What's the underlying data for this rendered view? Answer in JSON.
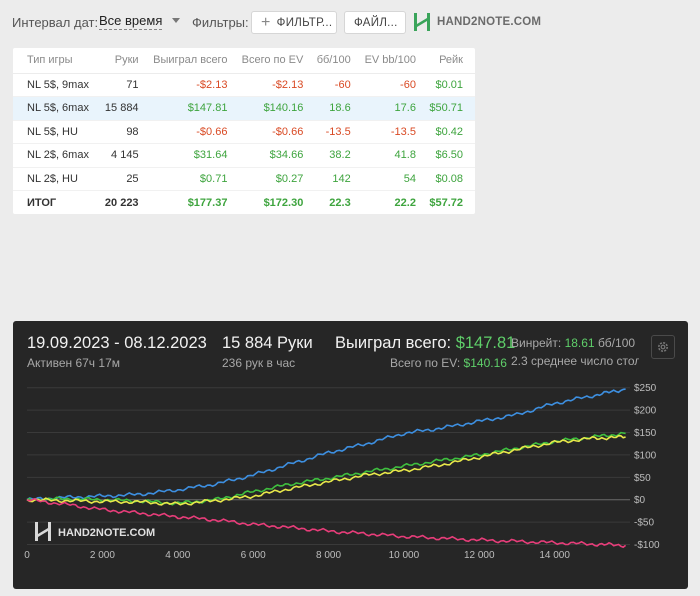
{
  "toolbar": {
    "interval_label": "Интервал дат:",
    "interval_value": "Все время",
    "filters_label": "Фильтры:",
    "filter_button": "ФИЛЬТР...",
    "file_button": "ФАЙЛ...",
    "logo_text": "HAND2NOTE.COM"
  },
  "table": {
    "headers": [
      "Тип игры",
      "Руки",
      "Выиграл всего",
      "Всего по EV",
      "бб/100",
      "EV bb/100",
      "Рейк"
    ],
    "rows": [
      [
        "NL 5$, 9max",
        "71",
        "-$2.13",
        "-$2.13",
        "-60",
        "-60",
        "$0.01"
      ],
      [
        "NL 5$, 6max",
        "15 884",
        "$147.81",
        "$140.16",
        "18.6",
        "17.6",
        "$50.71"
      ],
      [
        "NL 5$, HU",
        "98",
        "-$0.66",
        "-$0.66",
        "-13.5",
        "-13.5",
        "$0.42"
      ],
      [
        "NL 2$, 6max",
        "4 145",
        "$31.64",
        "$34.66",
        "38.2",
        "41.8",
        "$6.50"
      ],
      [
        "NL 2$, HU",
        "25",
        "$0.71",
        "$0.27",
        "142",
        "54",
        "$0.08"
      ]
    ],
    "total": [
      "ИТОГ",
      "20 223",
      "$177.37",
      "$172.30",
      "22.3",
      "22.2",
      "$57.72"
    ],
    "highlight_row": 1
  },
  "graph": {
    "date_range": "19.09.2023 - 08.12.2023",
    "active": "Активен 67ч 17м",
    "hands": "15 884 Руки",
    "hands_per_hour": "236 рук в час",
    "won_label": "Выиграл всего:",
    "won_value": "$147.81",
    "ev_label": "Всего по EV:",
    "ev_value": "$140.16",
    "winrate_label": "Винрейт:",
    "winrate_value": "18.61",
    "winrate_unit": "бб/100",
    "avg_players": "2.3 среднее число стол",
    "logo_text": "HAND2NOTE.COM"
  },
  "chart_data": {
    "type": "line",
    "x_ticks": [
      0,
      2000,
      4000,
      6000,
      8000,
      10000,
      12000,
      14000
    ],
    "x_tick_labels": [
      "0",
      "2 000",
      "4 000",
      "6 000",
      "8 000",
      "10 000",
      "12 000",
      "14 000"
    ],
    "y_ticks": [
      250,
      200,
      150,
      100,
      50,
      0,
      -50,
      -100
    ],
    "y_tick_labels": [
      "$250",
      "$200",
      "$150",
      "$100",
      "$50",
      "$0",
      "-$50",
      "-$100"
    ],
    "xlim": [
      0,
      16000
    ],
    "ylim": [
      -110,
      265
    ],
    "grid": true,
    "series": [
      {
        "color": "#3d8fe0",
        "x": [
          0,
          1000,
          2000,
          3000,
          4000,
          5000,
          6000,
          7000,
          8000,
          9000,
          10000,
          11000,
          12000,
          13000,
          14000,
          15000,
          15884
        ],
        "y": [
          0,
          5,
          8,
          12,
          22,
          35,
          55,
          80,
          105,
          125,
          148,
          160,
          175,
          190,
          215,
          232,
          247
        ]
      },
      {
        "color": "#3fbf3f",
        "x": [
          0,
          1000,
          2000,
          3000,
          4000,
          5000,
          6000,
          7000,
          8000,
          9000,
          10000,
          11000,
          12000,
          13000,
          14000,
          15000,
          15884
        ],
        "y": [
          0,
          2,
          0,
          -3,
          -8,
          0,
          18,
          35,
          48,
          62,
          75,
          88,
          100,
          115,
          130,
          140,
          148
        ]
      },
      {
        "color": "#e8e84a",
        "x": [
          0,
          1000,
          2000,
          3000,
          4000,
          5000,
          6000,
          7000,
          8000,
          9000,
          10000,
          11000,
          12000,
          13000,
          14000,
          15000,
          15884
        ],
        "y": [
          0,
          -2,
          -4,
          -5,
          -10,
          -2,
          8,
          25,
          40,
          55,
          65,
          78,
          95,
          112,
          128,
          137,
          140
        ]
      },
      {
        "color": "#e83d7a",
        "x": [
          0,
          1000,
          2000,
          3000,
          4000,
          5000,
          6000,
          7000,
          8000,
          9000,
          10000,
          11000,
          12000,
          13000,
          14000,
          15000,
          15884
        ],
        "y": [
          0,
          -10,
          -22,
          -30,
          -38,
          -45,
          -55,
          -62,
          -70,
          -76,
          -82,
          -86,
          -90,
          -93,
          -96,
          -99,
          -102
        ]
      }
    ]
  }
}
